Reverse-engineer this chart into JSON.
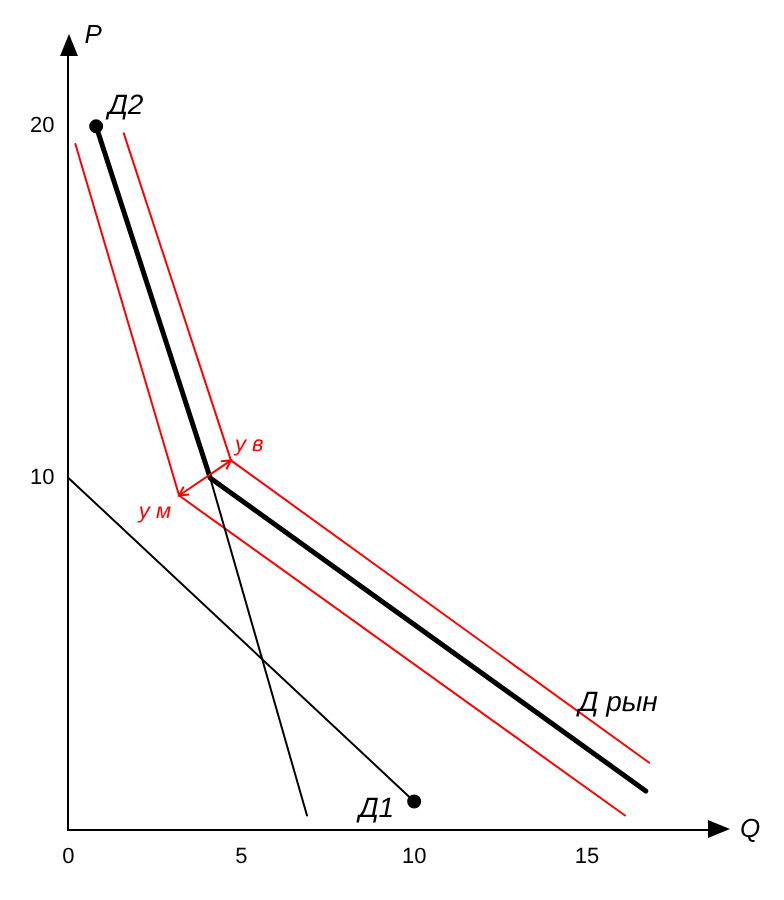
{
  "chart_data": {
    "type": "line",
    "xlabel": "Q",
    "ylabel": "P",
    "xlim": [
      0,
      18.5
    ],
    "ylim": [
      0,
      22
    ],
    "xticks": [
      0,
      5,
      10,
      15
    ],
    "yticks": [
      10,
      20
    ],
    "grid": false,
    "legend": false,
    "marker": "none",
    "series": [
      {
        "name": "Д1",
        "color": "#000000",
        "x": [
          0,
          10
        ],
        "values": [
          10,
          0.8
        ]
      },
      {
        "name": "Д2",
        "color": "#000000",
        "x": [
          6.9,
          4.1,
          0.8
        ],
        "values": [
          0.4,
          10,
          20
        ]
      },
      {
        "name": "Д рын",
        "color": "#000000",
        "x": [
          0.8,
          4.1,
          16.7
        ],
        "values": [
          20,
          10,
          1.1
        ]
      },
      {
        "color": "#ff0000",
        "x": [
          1.6,
          4.7,
          16.8
        ],
        "values": [
          19.8,
          10.5,
          1.9
        ]
      },
      {
        "color": "#ff0000",
        "x": [
          0.2,
          3.2,
          16.1
        ],
        "values": [
          19.5,
          9.5,
          0.4
        ]
      },
      {
        "type": "scatter",
        "color": "#000000",
        "marker": "circle",
        "x": [
          0.8,
          10
        ],
        "values": [
          20,
          0.8
        ]
      }
    ],
    "annotations": [
      {
        "text": "у в",
        "x": 4.7,
        "y": 10.5
      },
      {
        "text": "у м",
        "x": 3.2,
        "y": 9.5
      }
    ]
  }
}
